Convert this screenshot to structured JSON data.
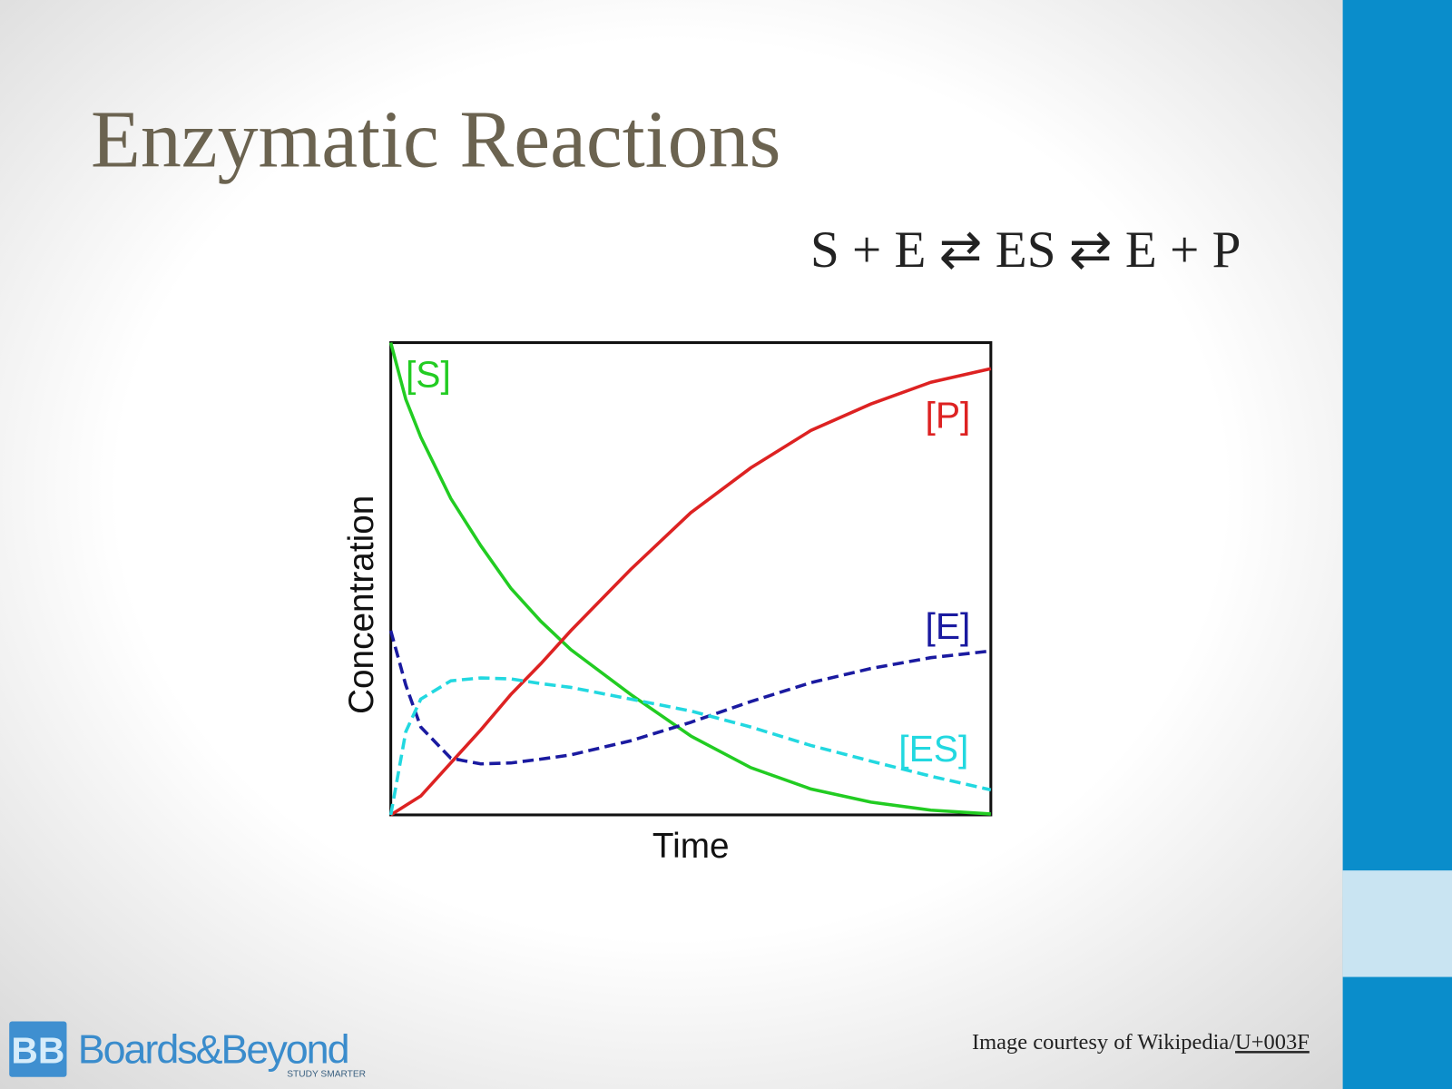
{
  "slide": {
    "title": "Enzymatic Reactions",
    "equation": "S + E ⇄ ES ⇄ E + P",
    "credit": {
      "text": "Image courtesy of Wikipedia/",
      "link": "U+003F"
    },
    "logo": {
      "icon": "BB",
      "name": "Boards&Beyond",
      "tagline": "STUDY SMARTER"
    }
  },
  "chart_data": {
    "type": "line",
    "xlabel": "Time",
    "ylabel": "Concentration",
    "x": [
      0,
      2.5,
      5,
      10,
      15,
      20,
      25,
      30,
      40,
      50,
      60,
      70,
      80,
      90,
      100
    ],
    "xlim": [
      0,
      100
    ],
    "ylim": [
      0,
      100
    ],
    "series": [
      {
        "name": "[S]",
        "color": "#22cc22",
        "dash": false,
        "values": [
          100,
          88,
          80,
          67,
          57,
          48,
          41,
          35,
          25.5,
          16.7,
          10,
          5.5,
          2.7,
          1,
          0.2
        ]
      },
      {
        "name": "[P]",
        "color": "#dd2222",
        "dash": false,
        "values": [
          0,
          2,
          4,
          11,
          18,
          25.5,
          32,
          39,
          52,
          64,
          73.5,
          81.4,
          87,
          91.6,
          94.5
        ]
      },
      {
        "name": "[E]",
        "color": "#1a1aa0",
        "dash": true,
        "values": [
          39,
          27.5,
          18.6,
          12,
          10.8,
          11,
          11.8,
          12.7,
          15.7,
          19.6,
          24,
          28,
          31,
          33.3,
          34.7
        ]
      },
      {
        "name": "[ES]",
        "color": "#22d8e0",
        "dash": true,
        "values": [
          0,
          17.6,
          24.5,
          28.4,
          29,
          28.8,
          27.8,
          27,
          24.5,
          22,
          18.6,
          14.7,
          11.4,
          8.2,
          5.3
        ]
      }
    ]
  }
}
